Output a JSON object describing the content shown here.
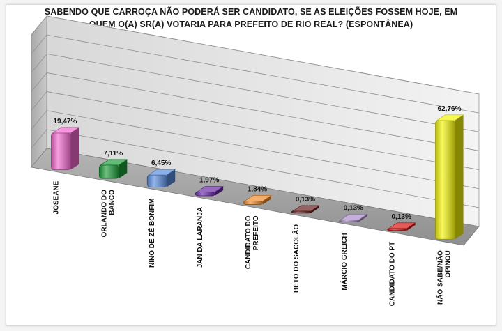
{
  "chart_data": {
    "type": "bar",
    "title": "SABENDO QUE CARROÇA NÃO PODERÁ SER CANDIDATO, SE AS ELEIÇÕES FOSSEM HOJE, EM QUEM O(A) SR(A) VOTARIA PARA PREFEITO DE RIO REAL? (ESPONTÂNEA)",
    "title_lines": [
      "SABENDO QUE CARROÇA NÃO PODERÁ SER CANDIDATO, SE AS ELEIÇÕES FOSSEM HOJE, EM",
      "QUEM O(A) SR(A) VOTARIA PARA PREFEITO DE RIO REAL? (ESPONTÂNEA)"
    ],
    "categories": [
      "JOSEANE",
      "ORLANDO DO BANCO",
      "NINO DE ZÉ BONFIM",
      "JAN DA LARANJA",
      "CANDIDATO DO PREFEITO",
      "BETO DO SACOLÃO",
      "MÁRCIO GREICH",
      "CANDIDATO DO PT",
      "NÃO SABE/NÃO OPINOU"
    ],
    "category_lines": [
      [
        "JOSEANE"
      ],
      [
        "ORLANDO DO",
        "BANCO"
      ],
      [
        "NINO DE ZÉ BONFIM"
      ],
      [
        "JAN DA LARANJA"
      ],
      [
        "CANDIDATO DO",
        "PREFEITO"
      ],
      [
        "BETO DO SACOLÃO"
      ],
      [
        "MÁRCIO GREICH"
      ],
      [
        "CANDIDATO DO PT"
      ],
      [
        "NÃO SABE/NÃO",
        "OPINOU"
      ]
    ],
    "values": [
      19.47,
      7.11,
      6.45,
      1.97,
      1.84,
      0.13,
      0.13,
      0.13,
      62.76
    ],
    "value_labels": [
      "19,47%",
      "7,11%",
      "6,45%",
      "1,97%",
      "1,84%",
      "0,13%",
      "0,13%",
      "0,13%",
      "62,76%"
    ],
    "colors": [
      "#f26bd0",
      "#1e9e3a",
      "#5b8fe0",
      "#6b2aa8",
      "#f08a2a",
      "#6a1e1e",
      "#a98cc8",
      "#d41414",
      "#f5f50a"
    ],
    "ylim": [
      0,
      70
    ],
    "grid": true,
    "legend": "none",
    "style": "3d-cylinder"
  }
}
